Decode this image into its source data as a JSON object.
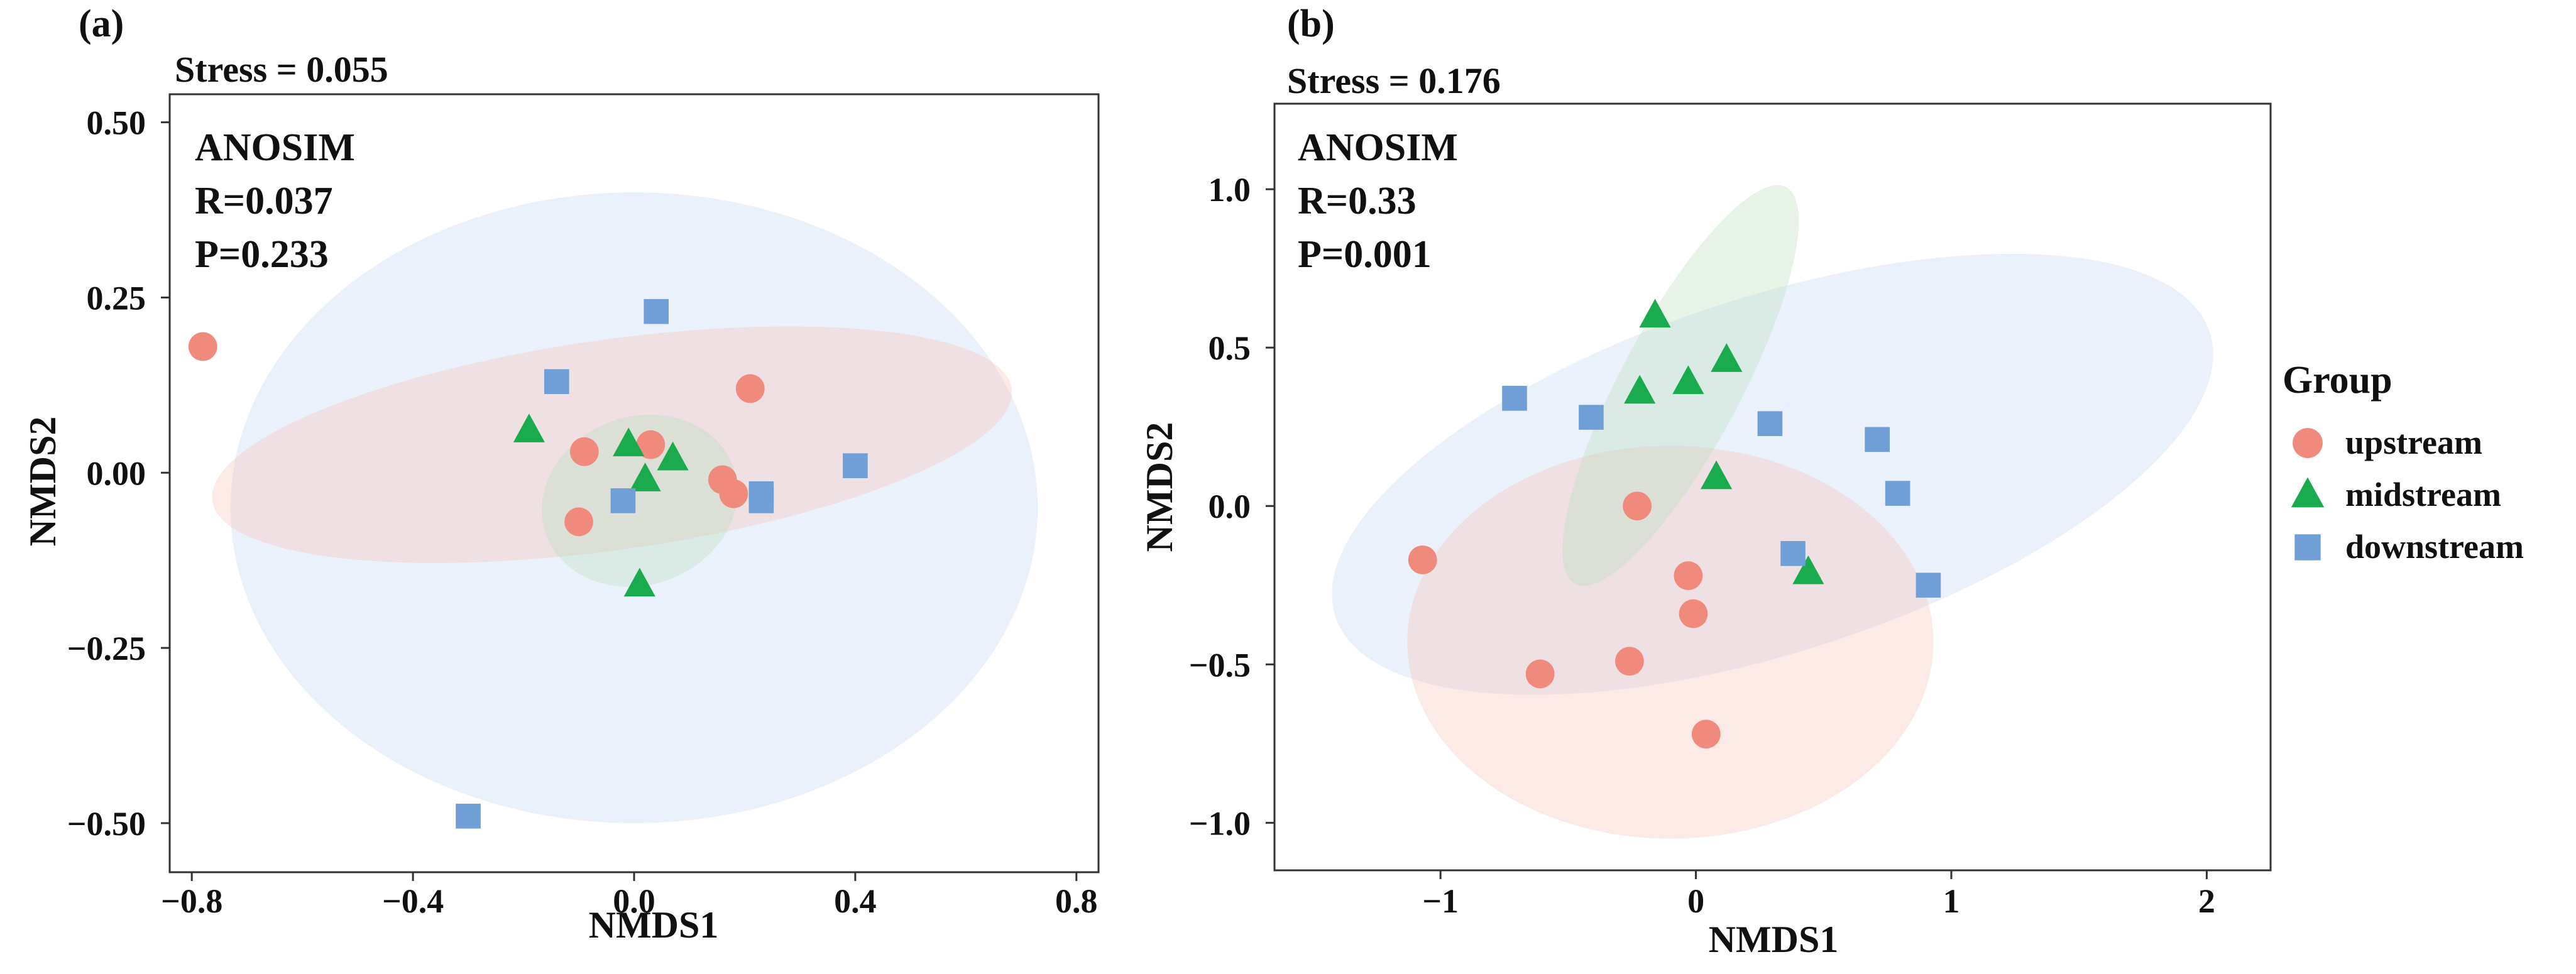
{
  "chart_data": [
    {
      "type": "scatter",
      "panel_label": "(a)",
      "stress": "Stress = 0.055",
      "annotation": [
        "ANOSIM",
        "R=0.037",
        "P=0.233"
      ],
      "xlabel": "NMDS1",
      "ylabel": "NMDS2",
      "xlim": [
        -0.84,
        0.84
      ],
      "ylim": [
        -0.57,
        0.54
      ],
      "xticks": [
        -0.8,
        -0.4,
        0,
        0.4,
        0.8
      ],
      "xtick_labels": [
        "−0.8",
        "−0.4",
        "0.0",
        "0.4",
        "0.8"
      ],
      "yticks": [
        0.5,
        0.25,
        0,
        -0.25,
        -0.5
      ],
      "ytick_labels": [
        "0.50",
        "0.25",
        "0.00",
        "−0.25",
        "−0.50"
      ],
      "grid": false,
      "series": [
        {
          "name": "upstream",
          "points": [
            [
              -0.78,
              0.18
            ],
            [
              0.21,
              0.12
            ],
            [
              -0.09,
              0.03
            ],
            [
              0.03,
              0.04
            ],
            [
              0.16,
              -0.01
            ],
            [
              0.18,
              -0.03
            ],
            [
              -0.1,
              -0.07
            ]
          ]
        },
        {
          "name": "midstream",
          "points": [
            [
              -0.19,
              0.06
            ],
            [
              -0.01,
              0.04
            ],
            [
              0.02,
              -0.01
            ],
            [
              0.07,
              0.02
            ],
            [
              0.01,
              -0.16
            ]
          ]
        },
        {
          "name": "downstream",
          "points": [
            [
              0.04,
              0.23
            ],
            [
              -0.14,
              0.13
            ],
            [
              -0.02,
              -0.04
            ],
            [
              0.23,
              -0.03
            ],
            [
              0.23,
              -0.04
            ],
            [
              0.4,
              0.01
            ],
            [
              -0.3,
              -0.49
            ]
          ]
        }
      ],
      "ellipses": [
        {
          "group": "downstream",
          "cx": 0.0,
          "cy": -0.05,
          "rx": 0.73,
          "ry": 0.45,
          "angle": 0
        },
        {
          "group": "upstream",
          "cx": -0.04,
          "cy": 0.04,
          "rx": 0.73,
          "ry": 0.15,
          "angle": -8
        },
        {
          "group": "midstream",
          "cx": 0.01,
          "cy": -0.04,
          "rx": 0.18,
          "ry": 0.12,
          "angle": -20
        }
      ]
    },
    {
      "type": "scatter",
      "panel_label": "(b)",
      "stress": "Stress = 0.176",
      "annotation": [
        "ANOSIM",
        "R=0.33",
        "P=0.001"
      ],
      "xlabel": "NMDS1",
      "ylabel": "NMDS2",
      "xlim": [
        -1.65,
        2.25
      ],
      "ylim": [
        -1.15,
        1.27
      ],
      "xticks": [
        -1,
        0,
        1,
        2
      ],
      "xtick_labels": [
        "−1",
        "0",
        "1",
        "2"
      ],
      "yticks": [
        1.0,
        0.5,
        0,
        -0.5,
        -1.0
      ],
      "ytick_labels": [
        "1.0",
        "0.5",
        "0.0",
        "−0.5",
        "−1.0"
      ],
      "grid": false,
      "series": [
        {
          "name": "upstream",
          "points": [
            [
              -1.07,
              -0.17
            ],
            [
              -0.23,
              0.0
            ],
            [
              -0.03,
              -0.22
            ],
            [
              -0.01,
              -0.34
            ],
            [
              -0.26,
              -0.49
            ],
            [
              -0.61,
              -0.53
            ],
            [
              0.04,
              -0.72
            ]
          ]
        },
        {
          "name": "midstream",
          "points": [
            [
              -0.16,
              0.6
            ],
            [
              0.12,
              0.46
            ],
            [
              -0.03,
              0.39
            ],
            [
              -0.22,
              0.36
            ],
            [
              0.08,
              0.09
            ],
            [
              0.44,
              -0.21
            ]
          ]
        },
        {
          "name": "downstream",
          "points": [
            [
              -0.71,
              0.34
            ],
            [
              -0.41,
              0.28
            ],
            [
              0.29,
              0.26
            ],
            [
              0.71,
              0.21
            ],
            [
              0.79,
              0.04
            ],
            [
              0.38,
              -0.15
            ],
            [
              0.91,
              -0.25
            ]
          ]
        }
      ],
      "ellipses": [
        {
          "group": "downstream",
          "cx": 0.3,
          "cy": 0.1,
          "rx": 1.8,
          "ry": 0.56,
          "angle": -18
        },
        {
          "group": "upstream",
          "cx": -0.1,
          "cy": -0.43,
          "rx": 1.03,
          "ry": 0.62,
          "angle": 0
        },
        {
          "group": "midstream",
          "cx": -0.06,
          "cy": 0.38,
          "rx": 0.88,
          "ry": 0.19,
          "angle": -62
        }
      ]
    }
  ],
  "legend": {
    "title": "Group",
    "items": [
      {
        "label": "upstream",
        "shape": "circle"
      },
      {
        "label": "midstream",
        "shape": "triangle"
      },
      {
        "label": "downstream",
        "shape": "square"
      }
    ]
  },
  "colors": {
    "upstream": "#f08a7c",
    "midstream": "#1aab4e",
    "downstream": "#6f9fd6",
    "upstream_ellipse": "#f6c4b6",
    "midstream_ellipse": "#b9dcb9",
    "downstream_ellipse": "#c6d6f0"
  }
}
